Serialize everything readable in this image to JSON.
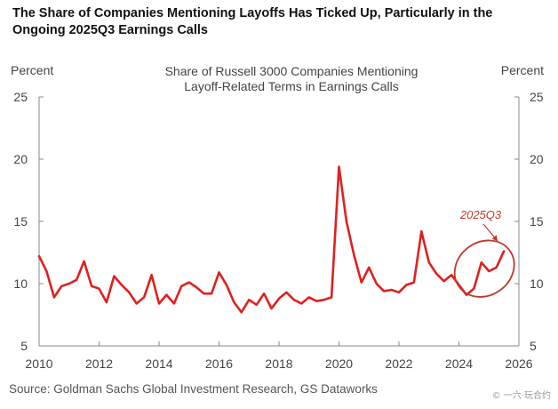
{
  "header": {
    "title": "The Share of Companies Mentioning Layoffs Has Ticked Up, Particularly in the Ongoing 2025Q3 Earnings Calls"
  },
  "footer": {
    "source": "Source: Goldman Sachs Global Investment Research, GS Dataworks",
    "watermark": "© 一六·玩合约"
  },
  "chart_data": {
    "type": "line",
    "title_lines": [
      "Share of Russell 3000 Companies Mentioning",
      "Layoff-Related Terms  in Earnings Calls"
    ],
    "ylabel_left": "Percent",
    "ylabel_right": "Percent",
    "xlim": [
      2010,
      2026
    ],
    "ylim": [
      5,
      25
    ],
    "x_ticks": [
      2010,
      2012,
      2014,
      2016,
      2018,
      2020,
      2022,
      2024,
      2026
    ],
    "y_ticks": [
      5,
      10,
      15,
      20,
      25
    ],
    "grid": false,
    "annotation": {
      "text": "2025Q3",
      "color": "#c0392b"
    },
    "colors": {
      "line": "#e02020",
      "axis": "#888888",
      "text": "#444444"
    },
    "series": [
      {
        "x": [
          2010.0,
          2010.25,
          2010.5,
          2010.75,
          2011.0,
          2011.25,
          2011.5,
          2011.75,
          2012.0,
          2012.25,
          2012.5,
          2012.75,
          2013.0,
          2013.25,
          2013.5,
          2013.75,
          2014.0,
          2014.25,
          2014.5,
          2014.75,
          2015.0,
          2015.25,
          2015.5,
          2015.75,
          2016.0,
          2016.25,
          2016.5,
          2016.75,
          2017.0,
          2017.25,
          2017.5,
          2017.75,
          2018.0,
          2018.25,
          2018.5,
          2018.75,
          2019.0,
          2019.25,
          2019.5,
          2019.75,
          2020.0,
          2020.25,
          2020.5,
          2020.75,
          2021.0,
          2021.25,
          2021.5,
          2021.75,
          2022.0,
          2022.25,
          2022.5,
          2022.75,
          2023.0,
          2023.25,
          2023.5,
          2023.75,
          2024.0,
          2024.25,
          2024.5,
          2024.75,
          2025.0,
          2025.25,
          2025.5
        ],
        "values": [
          12.2,
          11.0,
          8.9,
          9.8,
          10.0,
          10.3,
          11.8,
          9.8,
          9.6,
          8.5,
          10.6,
          9.9,
          9.3,
          8.4,
          8.9,
          10.7,
          8.4,
          9.1,
          8.4,
          9.8,
          10.1,
          9.7,
          9.2,
          9.2,
          10.9,
          9.9,
          8.5,
          7.7,
          8.7,
          8.3,
          9.2,
          8.0,
          8.8,
          9.3,
          8.7,
          8.4,
          8.9,
          8.6,
          8.7,
          8.9,
          19.4,
          15.0,
          12.3,
          10.1,
          11.3,
          10.0,
          9.4,
          9.5,
          9.3,
          9.9,
          10.1,
          14.2,
          11.7,
          10.8,
          10.2,
          10.7,
          9.9,
          9.1,
          9.6,
          11.7,
          11.0,
          11.3,
          12.6
        ]
      }
    ]
  }
}
